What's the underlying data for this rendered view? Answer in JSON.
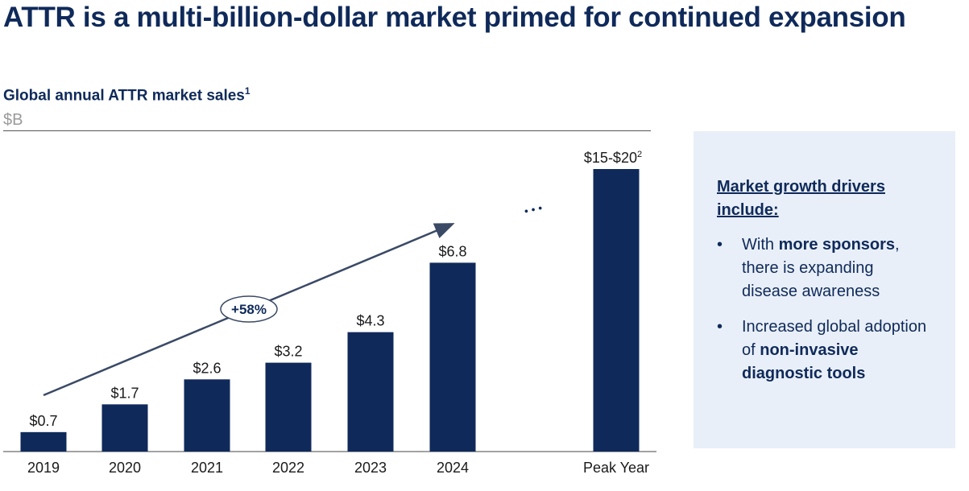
{
  "title": "ATTR is a multi-billion-dollar market primed for continued expansion",
  "subtitle": "Global annual ATTR market sales",
  "subtitle_footnote": "1",
  "unit": "$B",
  "chart_data": {
    "type": "bar",
    "categories": [
      "2019",
      "2020",
      "2021",
      "2022",
      "2023",
      "2024",
      "Peak Year"
    ],
    "values": [
      0.7,
      1.7,
      2.6,
      3.2,
      4.3,
      6.8,
      17.5
    ],
    "data_labels": [
      "$0.7",
      "$1.7",
      "$2.6",
      "$3.2",
      "$4.3",
      "$6.8",
      "$15-$20"
    ],
    "peak_label_footnote": "2",
    "growth_annotation": "+58%",
    "ellipsis": "• • •",
    "bar_color": "#0f2a5a",
    "ylabel": "$B",
    "grid": false
  },
  "panel": {
    "heading": "Market growth drivers include:",
    "bullets": [
      {
        "marker": "•",
        "parts": [
          {
            "text": "With ",
            "bold": false
          },
          {
            "text": "more sponsors",
            "bold": true
          },
          {
            "text": ", there is expanding disease awareness",
            "bold": false
          }
        ]
      },
      {
        "marker": "•",
        "parts": [
          {
            "text": "Increased global adoption of ",
            "bold": false
          },
          {
            "text": "non-invasive diagnostic tools",
            "bold": true
          }
        ]
      }
    ]
  },
  "colors": {
    "navy": "#0f2a5a",
    "panel_bg": "#e9eff8",
    "unit_gray": "#9a9a9a"
  }
}
